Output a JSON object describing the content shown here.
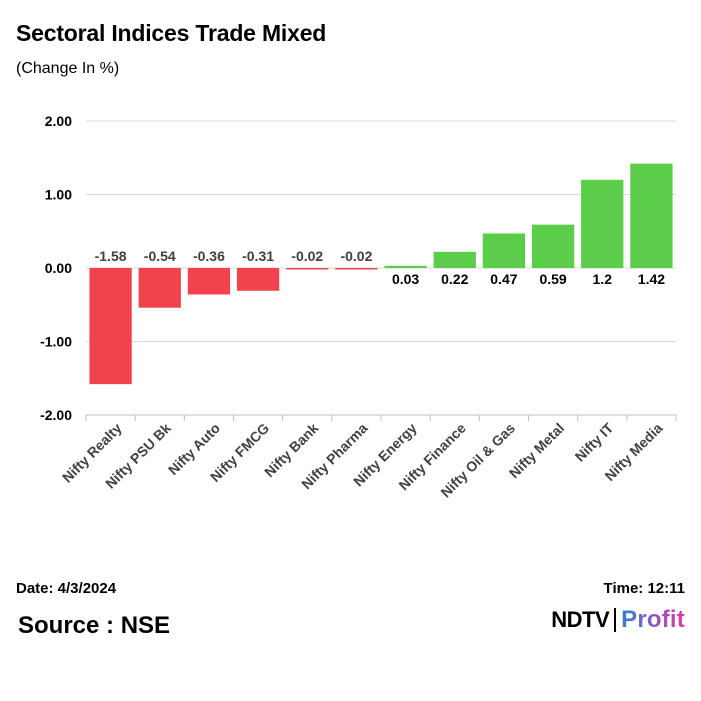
{
  "header": {
    "title": "Sectoral Indices Trade Mixed",
    "subtitle": "(Change In %)"
  },
  "footer": {
    "date": "Date: 4/3/2024",
    "time": "Time: 12:11",
    "source": "Source : NSE",
    "logo_left": "NDTV",
    "logo_right": "Profit"
  },
  "colors": {
    "negative": "#f0434d",
    "positive": "#5ccd4a",
    "grid": "#d9d9d9",
    "axis": "#bfbfbf",
    "logo_gradient_start": "#2f7fd8",
    "logo_gradient_end": "#e03aa5"
  },
  "chart_data": {
    "type": "bar",
    "title": "Sectoral Indices Trade Mixed",
    "subtitle": "(Change In %)",
    "xlabel": "",
    "ylabel": "",
    "ylim": [
      -2,
      2
    ],
    "yticks": [
      2,
      1,
      0,
      -1,
      -2
    ],
    "ytick_labels": [
      "2.00",
      "1.00",
      "0.00",
      "-1.00",
      "-2.00"
    ],
    "grid": true,
    "categories": [
      "Nifty Realty",
      "Nifty PSU Bk",
      "Nifty Auto",
      "Nifty FMCG",
      "Nifty Bank",
      "Nifty Pharma",
      "Nifty Energy",
      "Nifty Finance",
      "Nifty Oil & Gas",
      "Nifty Metal",
      "Nifty IT",
      "Nifty Media"
    ],
    "values": [
      -1.58,
      -0.54,
      -0.36,
      -0.31,
      -0.02,
      -0.02,
      0.03,
      0.22,
      0.47,
      0.59,
      1.2,
      1.42
    ],
    "labels": [
      "-1.58",
      "-0.54",
      "-0.36",
      "-0.31",
      "-0.02",
      "-0.02",
      "0.03",
      "0.22",
      "0.47",
      "0.59",
      "1.2",
      "1.42"
    ]
  }
}
